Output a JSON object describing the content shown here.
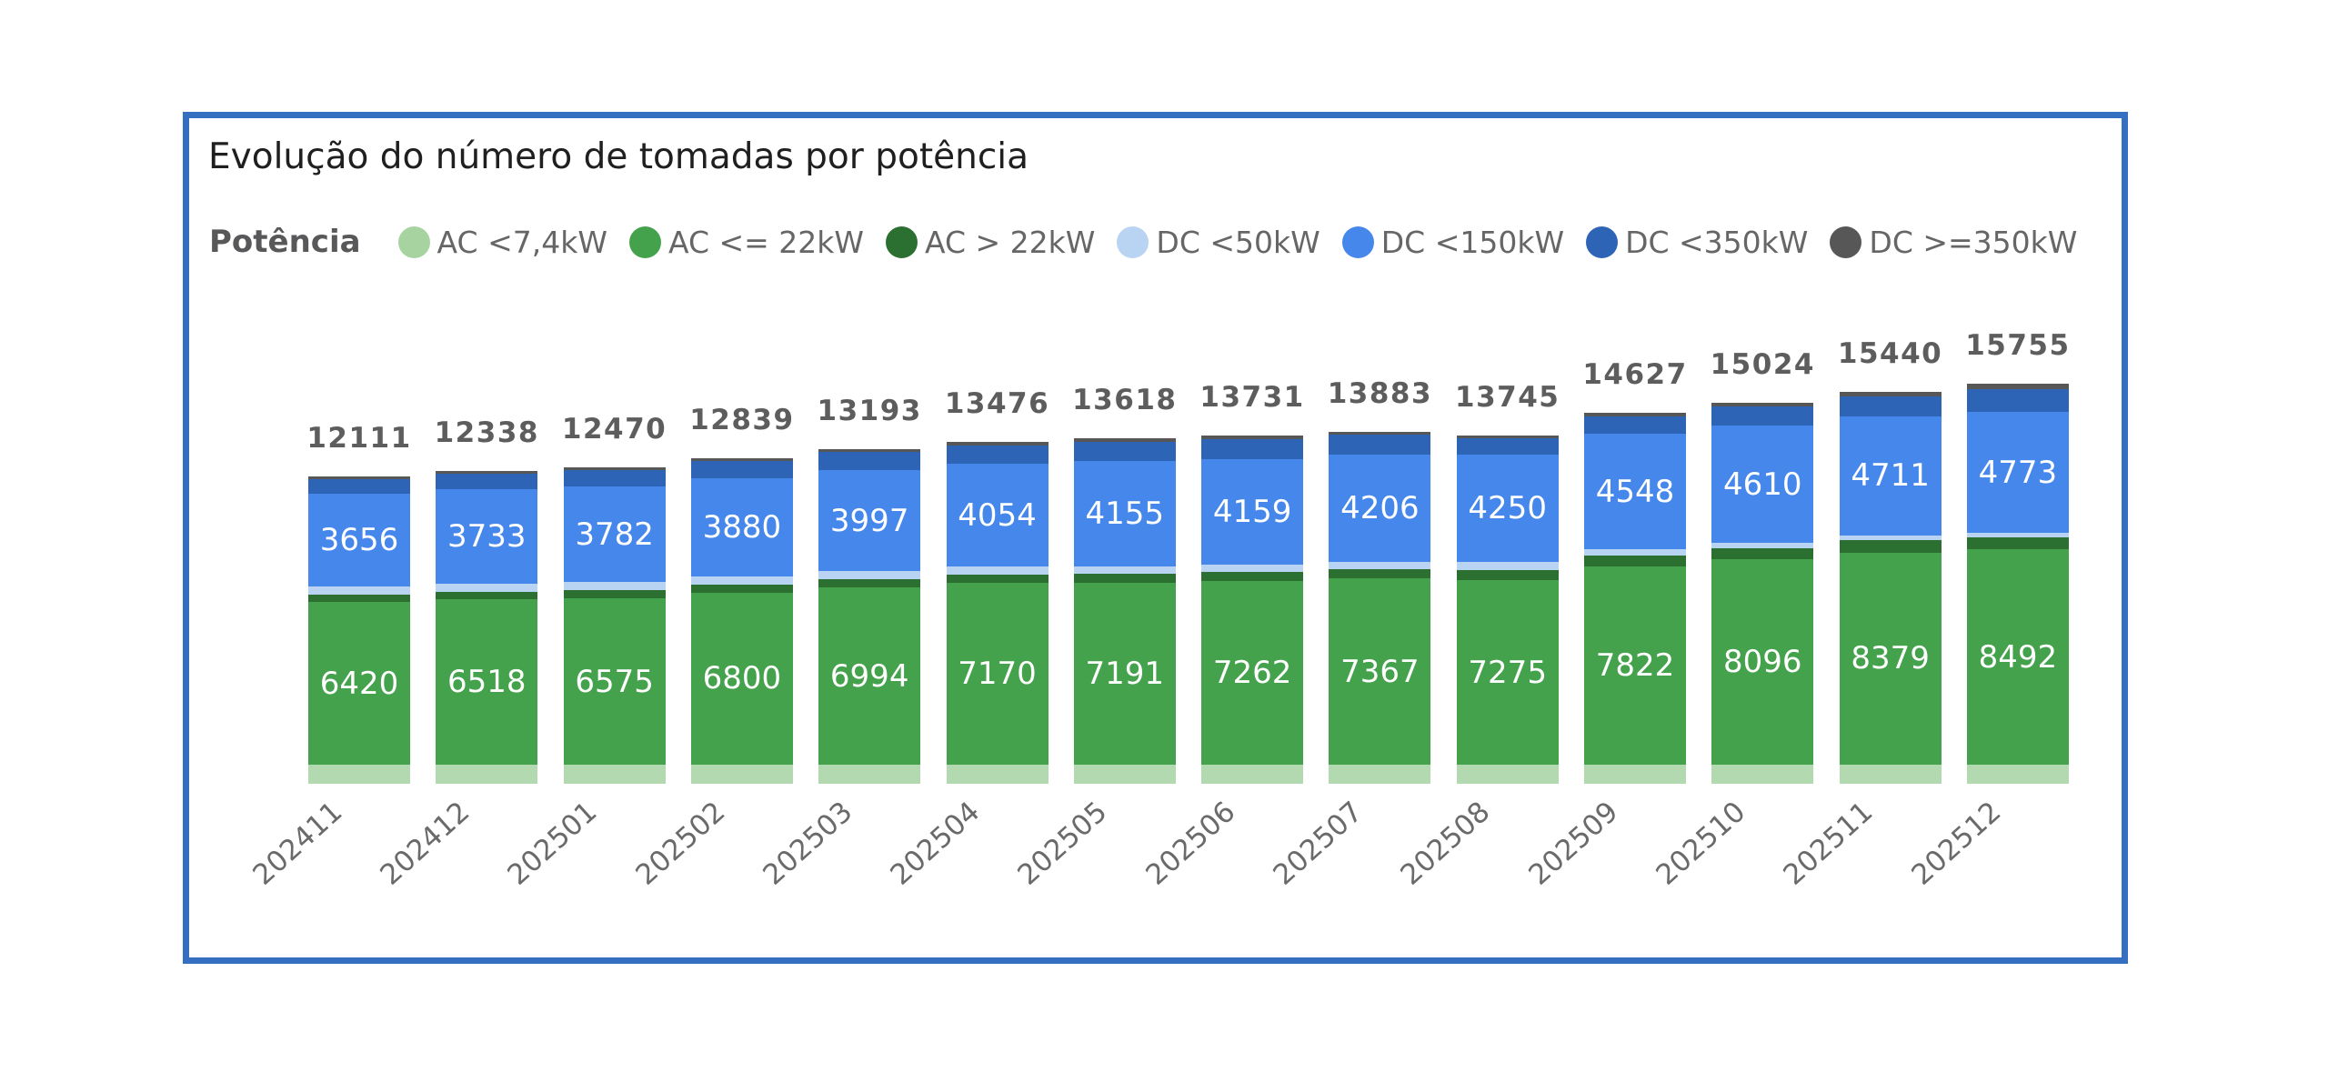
{
  "panel": {
    "border_color": "#346fc2",
    "background": "#ffffff"
  },
  "title": "Evolução do número de tomadas por potência",
  "legend": {
    "label": "Potência",
    "items": [
      {
        "name": "AC <7,4kW",
        "color": "#a7d3a1"
      },
      {
        "name": "AC <= 22kW",
        "color": "#45a24c"
      },
      {
        "name": "AC > 22kW",
        "color": "#2c7031"
      },
      {
        "name": "DC <50kW",
        "color": "#b9d3f2"
      },
      {
        "name": "DC <150kW",
        "color": "#4687ec"
      },
      {
        "name": "DC <350kW",
        "color": "#2e64b6"
      },
      {
        "name": "DC >=350kW",
        "color": "#575757"
      }
    ]
  },
  "chart_data": {
    "type": "bar",
    "stacked": true,
    "title": "Evolução do número de tomadas por potência",
    "legend_title": "Potência",
    "legend_position": "top",
    "grid": false,
    "ylim": [
      0,
      16000
    ],
    "categories": [
      "202411",
      "202412",
      "202501",
      "202502",
      "202503",
      "202504",
      "202505",
      "202506",
      "202507",
      "202508",
      "202509",
      "202510",
      "202511",
      "202512"
    ],
    "totals": [
      12111,
      12338,
      12470,
      12839,
      13193,
      13476,
      13618,
      13731,
      13883,
      13745,
      14627,
      15024,
      15440,
      15755
    ],
    "series": [
      {
        "name": "AC <7,4kW",
        "color": "#a7d3a1",
        "bar_color": "#b3d9b0",
        "show_labels": false,
        "estimated": true,
        "values": [
          740,
          740,
          740,
          740,
          740,
          740,
          740,
          740,
          740,
          740,
          740,
          740,
          740,
          740
        ]
      },
      {
        "name": "AC <= 22kW",
        "color": "#45a24c",
        "show_labels": true,
        "values": [
          6420,
          6518,
          6575,
          6800,
          6994,
          7170,
          7191,
          7262,
          7367,
          7275,
          7822,
          8096,
          8379,
          8492
        ]
      },
      {
        "name": "AC > 22kW",
        "color": "#2c7031",
        "show_labels": false,
        "estimated": true,
        "values": [
          290,
          300,
          305,
          315,
          325,
          335,
          345,
          350,
          355,
          420,
          430,
          455,
          470,
          480
        ]
      },
      {
        "name": "DC <50kW",
        "color": "#b9d3f2",
        "show_labels": false,
        "estimated": true,
        "values": [
          335,
          330,
          325,
          320,
          315,
          310,
          300,
          295,
          290,
          300,
          250,
          210,
          190,
          170
        ]
      },
      {
        "name": "DC <150kW",
        "color": "#4687ec",
        "show_labels": true,
        "values": [
          3656,
          3733,
          3782,
          3880,
          3997,
          4054,
          4155,
          4159,
          4206,
          4250,
          4548,
          4610,
          4711,
          4773
        ]
      },
      {
        "name": "DC <350kW",
        "color": "#2e64b6",
        "show_labels": false,
        "estimated": true,
        "values": [
          550,
          597,
          623,
          664,
          697,
          742,
          757,
          795,
          790,
          625,
          697,
          763,
          785,
          910
        ]
      },
      {
        "name": "DC >=350kW",
        "color": "#575757",
        "show_labels": false,
        "estimated": true,
        "values": [
          120,
          120,
          120,
          120,
          125,
          125,
          130,
          130,
          135,
          135,
          140,
          150,
          165,
          190
        ]
      }
    ]
  }
}
